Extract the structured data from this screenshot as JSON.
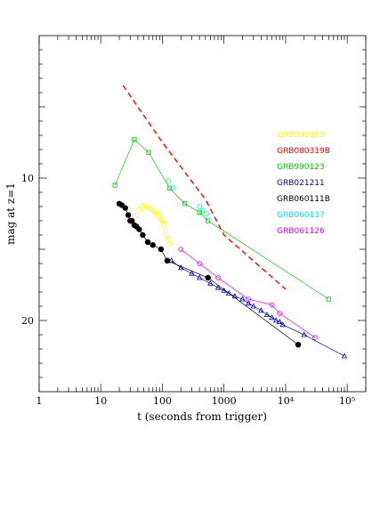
{
  "chart_data": {
    "type": "scatter",
    "xlabel": "t (seconds from trigger)",
    "ylabel": "mag at z=1",
    "xscale": "log",
    "xlim": [
      1,
      200000
    ],
    "ylim": [
      25,
      0
    ],
    "y_inverted": true,
    "x_ticks": [
      {
        "value": 1,
        "label": "1"
      },
      {
        "value": 10,
        "label": "10"
      },
      {
        "value": 100,
        "label": "100"
      },
      {
        "value": 1000,
        "label": "1000"
      },
      {
        "value": 10000,
        "label": "10⁴"
      },
      {
        "value": 100000,
        "label": "10⁵"
      }
    ],
    "y_ticks": [
      {
        "value": 10,
        "label": "10"
      },
      {
        "value": 20,
        "label": "20"
      }
    ],
    "legend_position": "right",
    "series": [
      {
        "name": "GRB990102",
        "color": "#ffff00",
        "marker": "open-circle",
        "line": false,
        "x": [
          38,
          42,
          46,
          50,
          55,
          60,
          65,
          70,
          76,
          82,
          88,
          95,
          100,
          105,
          110,
          118,
          125,
          130
        ],
        "y": [
          12.6,
          12.2,
          12.0,
          11.9,
          12.0,
          12.1,
          12.2,
          12.3,
          12.4,
          12.5,
          12.7,
          12.9,
          13.1,
          13.3,
          13.6,
          14.0,
          14.3,
          14.6
        ]
      },
      {
        "name": "GRB080319B",
        "color": "#ff0000",
        "marker": "none",
        "line": "dashed",
        "x": [
          23,
          100,
          500,
          1000,
          10000
        ],
        "y": [
          3.5,
          7.5,
          11.5,
          14.0,
          17.8
        ]
      },
      {
        "name": "GRB990123",
        "color": "#00cc00",
        "marker": "open-square",
        "line": true,
        "x": [
          17,
          35,
          60,
          130,
          230,
          400,
          550,
          50000
        ],
        "y": [
          10.5,
          7.3,
          8.2,
          10.7,
          11.8,
          12.4,
          13.0,
          18.5
        ]
      },
      {
        "name": "GRB021211",
        "color": "#0000cc",
        "marker": "open-triangle",
        "line": true,
        "x": [
          140,
          200,
          300,
          400,
          600,
          800,
          1000,
          1200,
          1500,
          2000,
          2500,
          3000,
          4000,
          5000,
          6000,
          7000,
          8000,
          9000,
          20000,
          90000
        ],
        "y": [
          15.8,
          16.3,
          16.7,
          17.0,
          17.4,
          17.7,
          17.9,
          18.1,
          18.3,
          18.5,
          18.8,
          19.0,
          19.3,
          19.6,
          19.8,
          20.0,
          20.1,
          20.3,
          21.0,
          22.5
        ]
      },
      {
        "name": "GRB060111B",
        "color": "#000000",
        "marker": "filled-circle",
        "line": true,
        "x": [
          20,
          22,
          25,
          28,
          30,
          32,
          35,
          38,
          42,
          48,
          58,
          70,
          95,
          120,
          550,
          16000
        ],
        "y": [
          11.8,
          11.9,
          12.1,
          12.6,
          13.0,
          13.0,
          13.3,
          13.4,
          13.6,
          14.0,
          14.5,
          14.7,
          15.0,
          15.8,
          17.0,
          21.7
        ]
      },
      {
        "name": "GRB060117",
        "color": "#00e5ee",
        "marker": "open-circle",
        "line": false,
        "x": [
          125,
          150,
          400,
          450,
          520
        ],
        "y": [
          10.2,
          10.7,
          12.0,
          12.3,
          12.5
        ]
      },
      {
        "name": "GRB061126",
        "color": "#ee00ee",
        "marker": "open-circle",
        "line": true,
        "x": [
          200,
          400,
          800,
          2500,
          6000,
          8000,
          30000
        ],
        "y": [
          15.0,
          16.0,
          17.0,
          18.5,
          18.9,
          19.5,
          21.2
        ]
      }
    ]
  }
}
